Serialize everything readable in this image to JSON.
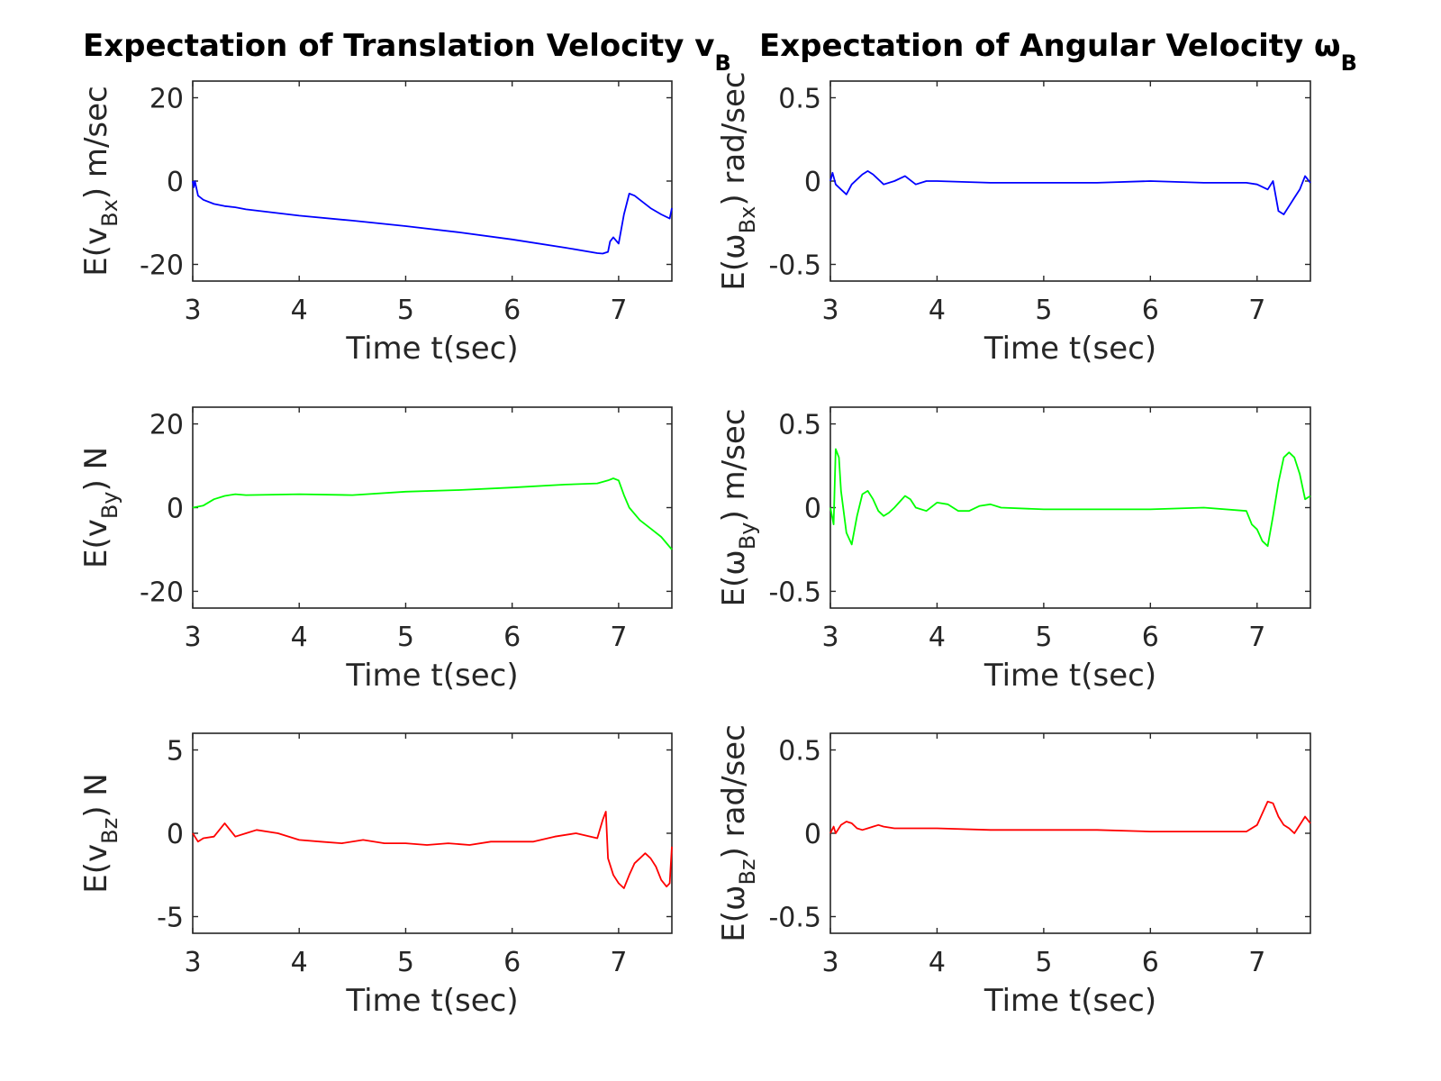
{
  "titles": {
    "left_main": "Expectation of Translation Velocity v",
    "left_sub": "B",
    "right_main": "Expectation of Angular Velocity ω",
    "right_sub": "B"
  },
  "colors": {
    "x": "#0000ff",
    "y": "#00ff00",
    "z": "#ff0000",
    "axis": "#262626"
  },
  "chart_data": [
    {
      "type": "line",
      "ylabel": {
        "pre": "E(v",
        "sub": "Bx",
        "post": ") m/sec"
      },
      "xlabel": "Time t(sec)",
      "xlim": [
        3,
        7.5
      ],
      "ylim": [
        -24,
        24
      ],
      "xticks": [
        3,
        4,
        5,
        6,
        7
      ],
      "yticks": [
        -20,
        0,
        20
      ],
      "yticklabels": [
        "-20",
        "0",
        "20"
      ],
      "color": "x",
      "x": [
        3.0,
        3.01,
        3.02,
        3.05,
        3.1,
        3.2,
        3.3,
        3.4,
        3.5,
        4.0,
        4.5,
        5.0,
        5.5,
        6.0,
        6.5,
        6.8,
        6.85,
        6.9,
        6.92,
        6.95,
        7.0,
        7.05,
        7.1,
        7.15,
        7.2,
        7.3,
        7.4,
        7.48,
        7.5
      ],
      "y": [
        0,
        -1.5,
        0,
        -3.5,
        -4.5,
        -5.5,
        -6,
        -6.3,
        -6.8,
        -8.3,
        -9.5,
        -10.8,
        -12.3,
        -14.0,
        -16,
        -17.3,
        -17.4,
        -17,
        -14.5,
        -13.5,
        -15,
        -8,
        -3,
        -3.5,
        -4.5,
        -6.5,
        -8,
        -9,
        -6.5
      ]
    },
    {
      "type": "line",
      "ylabel": {
        "pre": "E(ω",
        "sub": "Bx",
        "post": ") rad/sec"
      },
      "xlabel": "Time t(sec)",
      "xlim": [
        3,
        7.5
      ],
      "ylim": [
        -0.6,
        0.6
      ],
      "xticks": [
        3,
        4,
        5,
        6,
        7
      ],
      "yticks": [
        -0.5,
        0,
        0.5
      ],
      "yticklabels": [
        "-0.5",
        "0",
        "0.5"
      ],
      "color": "x",
      "x": [
        3.0,
        3.02,
        3.05,
        3.1,
        3.15,
        3.2,
        3.3,
        3.35,
        3.4,
        3.5,
        3.6,
        3.7,
        3.8,
        3.9,
        4.0,
        4.5,
        5.0,
        5.5,
        6.0,
        6.5,
        6.9,
        7.0,
        7.1,
        7.15,
        7.2,
        7.25,
        7.3,
        7.35,
        7.4,
        7.45,
        7.5
      ],
      "y": [
        0,
        0.05,
        -0.02,
        -0.05,
        -0.08,
        -0.02,
        0.04,
        0.06,
        0.04,
        -0.02,
        0.0,
        0.03,
        -0.02,
        0.0,
        0.0,
        -0.01,
        -0.01,
        -0.01,
        0.0,
        -0.01,
        -0.01,
        -0.02,
        -0.05,
        0.0,
        -0.18,
        -0.2,
        -0.15,
        -0.1,
        -0.05,
        0.03,
        -0.01
      ]
    },
    {
      "type": "line",
      "ylabel": {
        "pre": "E(v",
        "sub": "By",
        "post": ") N"
      },
      "xlabel": "Time t(sec)",
      "xlim": [
        3,
        7.5
      ],
      "ylim": [
        -24,
        24
      ],
      "xticks": [
        3,
        4,
        5,
        6,
        7
      ],
      "yticks": [
        -20,
        0,
        20
      ],
      "yticklabels": [
        "-20",
        "0",
        "20"
      ],
      "color": "y",
      "x": [
        3.0,
        3.1,
        3.2,
        3.3,
        3.4,
        3.5,
        4.0,
        4.5,
        5.0,
        5.5,
        6.0,
        6.5,
        6.8,
        6.9,
        6.95,
        7.0,
        7.05,
        7.1,
        7.2,
        7.3,
        7.4,
        7.5
      ],
      "y": [
        0,
        0.5,
        2,
        2.8,
        3.2,
        3.0,
        3.2,
        3.0,
        3.8,
        4.2,
        4.8,
        5.5,
        5.8,
        6.5,
        7,
        6.5,
        3,
        0,
        -3,
        -5,
        -7,
        -10
      ]
    },
    {
      "type": "line",
      "ylabel": {
        "pre": "E(ω",
        "sub": "By",
        "post": ") m/sec"
      },
      "xlabel": "Time t(sec)",
      "xlim": [
        3,
        7.5
      ],
      "ylim": [
        -0.6,
        0.6
      ],
      "xticks": [
        3,
        4,
        5,
        6,
        7
      ],
      "yticks": [
        -0.5,
        0,
        0.5
      ],
      "yticklabels": [
        "-0.5",
        "0",
        "0.5"
      ],
      "color": "y",
      "x": [
        3.0,
        3.03,
        3.05,
        3.08,
        3.1,
        3.15,
        3.2,
        3.25,
        3.3,
        3.35,
        3.4,
        3.45,
        3.5,
        3.55,
        3.6,
        3.7,
        3.75,
        3.8,
        3.9,
        4.0,
        4.1,
        4.2,
        4.3,
        4.4,
        4.5,
        4.6,
        5.0,
        5.5,
        6.0,
        6.5,
        6.9,
        6.95,
        7.0,
        7.05,
        7.1,
        7.15,
        7.2,
        7.25,
        7.3,
        7.35,
        7.4,
        7.45,
        7.5
      ],
      "y": [
        0,
        -0.1,
        0.35,
        0.3,
        0.1,
        -0.15,
        -0.22,
        -0.05,
        0.08,
        0.1,
        0.05,
        -0.02,
        -0.05,
        -0.03,
        0.0,
        0.07,
        0.05,
        0.0,
        -0.02,
        0.03,
        0.02,
        -0.02,
        -0.02,
        0.01,
        0.02,
        0.0,
        -0.01,
        -0.01,
        -0.01,
        0.0,
        -0.02,
        -0.1,
        -0.13,
        -0.2,
        -0.23,
        -0.05,
        0.15,
        0.3,
        0.33,
        0.3,
        0.2,
        0.05,
        0.07
      ]
    },
    {
      "type": "line",
      "ylabel": {
        "pre": "E(v",
        "sub": "Bz",
        "post": ") N"
      },
      "xlabel": "Time t(sec)",
      "xlim": [
        3,
        7.5
      ],
      "ylim": [
        -6,
        6
      ],
      "xticks": [
        3,
        4,
        5,
        6,
        7
      ],
      "yticks": [
        -5,
        0,
        5
      ],
      "yticklabels": [
        "-5",
        "0",
        "5"
      ],
      "color": "z",
      "x": [
        3.0,
        3.05,
        3.1,
        3.2,
        3.3,
        3.4,
        3.5,
        3.6,
        3.8,
        4.0,
        4.2,
        4.4,
        4.6,
        4.8,
        5.0,
        5.2,
        5.4,
        5.6,
        5.8,
        6.0,
        6.2,
        6.4,
        6.6,
        6.8,
        6.85,
        6.88,
        6.9,
        6.95,
        7.0,
        7.05,
        7.1,
        7.15,
        7.2,
        7.25,
        7.3,
        7.35,
        7.4,
        7.45,
        7.48,
        7.5
      ],
      "y": [
        0,
        -0.5,
        -0.3,
        -0.2,
        0.6,
        -0.2,
        0.0,
        0.2,
        0.0,
        -0.4,
        -0.5,
        -0.6,
        -0.4,
        -0.6,
        -0.6,
        -0.7,
        -0.6,
        -0.7,
        -0.5,
        -0.5,
        -0.5,
        -0.2,
        0.0,
        -0.3,
        0.8,
        1.3,
        -1.5,
        -2.5,
        -3.0,
        -3.3,
        -2.5,
        -1.8,
        -1.5,
        -1.2,
        -1.5,
        -2.0,
        -2.8,
        -3.2,
        -3.0,
        -0.8
      ]
    },
    {
      "type": "line",
      "ylabel": {
        "pre": "E(ω",
        "sub": "Bz",
        "post": ") rad/sec"
      },
      "xlabel": "Time t(sec)",
      "xlim": [
        3,
        7.5
      ],
      "ylim": [
        -0.6,
        0.6
      ],
      "xticks": [
        3,
        4,
        5,
        6,
        7
      ],
      "yticks": [
        -0.5,
        0,
        0.5
      ],
      "yticklabels": [
        "-0.5",
        "0",
        "0.5"
      ],
      "color": "z",
      "x": [
        3.0,
        3.03,
        3.05,
        3.1,
        3.15,
        3.2,
        3.25,
        3.3,
        3.35,
        3.4,
        3.45,
        3.5,
        3.6,
        4.0,
        4.5,
        5.0,
        5.5,
        6.0,
        6.5,
        6.9,
        7.0,
        7.05,
        7.1,
        7.15,
        7.2,
        7.25,
        7.3,
        7.35,
        7.4,
        7.45,
        7.5
      ],
      "y": [
        0,
        0.04,
        0.0,
        0.05,
        0.07,
        0.06,
        0.03,
        0.02,
        0.03,
        0.04,
        0.05,
        0.04,
        0.03,
        0.03,
        0.02,
        0.02,
        0.02,
        0.01,
        0.01,
        0.01,
        0.05,
        0.12,
        0.19,
        0.18,
        0.1,
        0.05,
        0.03,
        0.0,
        0.05,
        0.1,
        0.06
      ]
    }
  ]
}
